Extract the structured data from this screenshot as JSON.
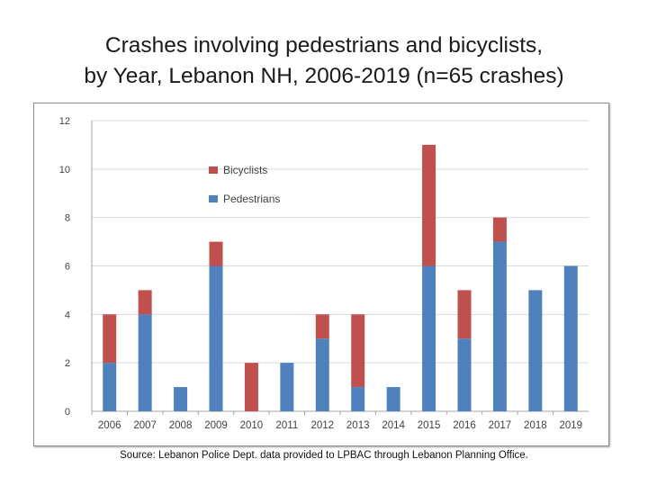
{
  "title": {
    "line1": "Crashes involving pedestrians and bicyclists,",
    "line2": "by Year, Lebanon NH, 2006-2019 (n=65 crashes)"
  },
  "source": "Source: Lebanon Police Dept. data provided to LPBAC through Lebanon Planning Office.",
  "colors": {
    "pedestrians": "#4f81bd",
    "bicyclists": "#c0504d",
    "grid": "#d9d9d9",
    "axis_text": "#404040"
  },
  "chart_data": {
    "type": "bar",
    "stacked": true,
    "categories": [
      "2006",
      "2007",
      "2008",
      "2009",
      "2010",
      "2011",
      "2012",
      "2013",
      "2014",
      "2015",
      "2016",
      "2017",
      "2018",
      "2019"
    ],
    "series": [
      {
        "name": "Pedestrians",
        "values": [
          2,
          4,
          1,
          6,
          0,
          2,
          3,
          1,
          1,
          6,
          3,
          7,
          5,
          6
        ]
      },
      {
        "name": "Bicyclists",
        "values": [
          2,
          1,
          0,
          1,
          2,
          0,
          1,
          3,
          0,
          5,
          2,
          1,
          0,
          0
        ]
      }
    ],
    "legend": [
      "Bicyclists",
      "Pedestrians"
    ],
    "legend_position": "top-center",
    "ylim": [
      0,
      12
    ],
    "yticks": [
      0,
      2,
      4,
      6,
      8,
      10,
      12
    ],
    "grid": true,
    "xlabel": "",
    "ylabel": ""
  }
}
